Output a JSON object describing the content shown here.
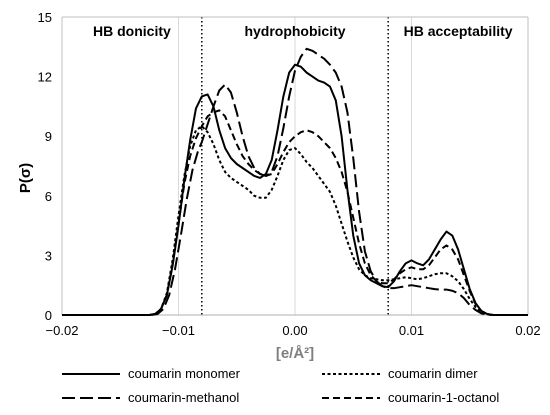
{
  "chart_data": {
    "type": "line",
    "xlabel": "[e/Å²]",
    "ylabel": "P(σ)",
    "xlim": [
      -0.02,
      0.02
    ],
    "ylim": [
      0,
      15
    ],
    "x_ticks": [
      "-0.02",
      "-0.01",
      "0.00",
      "0.01",
      "0.02"
    ],
    "y_ticks": [
      "0",
      "3",
      "6",
      "9",
      "12",
      "15"
    ],
    "grid": "vertical",
    "region_dividers": [
      -0.008,
      0.008
    ],
    "regions": [
      {
        "label": "HB donicity"
      },
      {
        "label": "hydrophobicity"
      },
      {
        "label": "HB acceptability"
      }
    ],
    "legend_position": "bottom",
    "series": [
      {
        "name": "coumarin monomer",
        "dash": "solid",
        "points": [
          [
            -0.02,
            0
          ],
          [
            -0.0125,
            0
          ],
          [
            -0.012,
            0.05
          ],
          [
            -0.0115,
            0.3
          ],
          [
            -0.011,
            1.0
          ],
          [
            -0.0105,
            2.5
          ],
          [
            -0.01,
            4.5
          ],
          [
            -0.0095,
            6.8
          ],
          [
            -0.009,
            8.8
          ],
          [
            -0.0085,
            10.4
          ],
          [
            -0.008,
            11.0
          ],
          [
            -0.0075,
            11.1
          ],
          [
            -0.007,
            10.5
          ],
          [
            -0.0065,
            9.3
          ],
          [
            -0.006,
            8.4
          ],
          [
            -0.0055,
            7.9
          ],
          [
            -0.005,
            7.6
          ],
          [
            -0.0045,
            7.4
          ],
          [
            -0.004,
            7.2
          ],
          [
            -0.0035,
            7.0
          ],
          [
            -0.003,
            6.9
          ],
          [
            -0.0025,
            7.1
          ],
          [
            -0.002,
            7.8
          ],
          [
            -0.0015,
            9.3
          ],
          [
            -0.001,
            11.0
          ],
          [
            -0.0005,
            12.2
          ],
          [
            0.0,
            12.6
          ],
          [
            0.0005,
            12.5
          ],
          [
            0.001,
            12.2
          ],
          [
            0.0015,
            12.0
          ],
          [
            0.002,
            11.8
          ],
          [
            0.0025,
            11.7
          ],
          [
            0.003,
            11.5
          ],
          [
            0.0035,
            10.8
          ],
          [
            0.004,
            9.0
          ],
          [
            0.0045,
            6.3
          ],
          [
            0.005,
            4.0
          ],
          [
            0.0055,
            2.6
          ],
          [
            0.006,
            2.0
          ],
          [
            0.0065,
            1.75
          ],
          [
            0.007,
            1.6
          ],
          [
            0.0075,
            1.45
          ],
          [
            0.008,
            1.4
          ],
          [
            0.0085,
            1.7
          ],
          [
            0.009,
            2.2
          ],
          [
            0.0095,
            2.6
          ],
          [
            0.01,
            2.75
          ],
          [
            0.0105,
            2.6
          ],
          [
            0.011,
            2.5
          ],
          [
            0.0115,
            2.8
          ],
          [
            0.012,
            3.3
          ],
          [
            0.0125,
            3.8
          ],
          [
            0.013,
            4.2
          ],
          [
            0.0135,
            4.0
          ],
          [
            0.014,
            3.3
          ],
          [
            0.0145,
            2.3
          ],
          [
            0.015,
            1.3
          ],
          [
            0.0155,
            0.6
          ],
          [
            0.016,
            0.2
          ],
          [
            0.0165,
            0.05
          ],
          [
            0.017,
            0
          ],
          [
            0.02,
            0
          ]
        ]
      },
      {
        "name": "coumarin dimer",
        "dash": "short-dash",
        "points": [
          [
            -0.02,
            0
          ],
          [
            -0.0125,
            0
          ],
          [
            -0.012,
            0.05
          ],
          [
            -0.0115,
            0.3
          ],
          [
            -0.011,
            1.1
          ],
          [
            -0.0105,
            2.8
          ],
          [
            -0.01,
            5.0
          ],
          [
            -0.0095,
            7.0
          ],
          [
            -0.009,
            8.5
          ],
          [
            -0.0085,
            9.3
          ],
          [
            -0.008,
            9.5
          ],
          [
            -0.0075,
            9.2
          ],
          [
            -0.007,
            8.6
          ],
          [
            -0.0065,
            7.8
          ],
          [
            -0.006,
            7.2
          ],
          [
            -0.0055,
            6.9
          ],
          [
            -0.005,
            6.7
          ],
          [
            -0.0045,
            6.5
          ],
          [
            -0.004,
            6.3
          ],
          [
            -0.0035,
            6.0
          ],
          [
            -0.003,
            5.9
          ],
          [
            -0.0025,
            5.9
          ],
          [
            -0.002,
            6.3
          ],
          [
            -0.0015,
            7.0
          ],
          [
            -0.001,
            7.8
          ],
          [
            -0.0005,
            8.3
          ],
          [
            0.0,
            8.4
          ],
          [
            0.0005,
            8.1
          ],
          [
            0.001,
            7.7
          ],
          [
            0.0015,
            7.4
          ],
          [
            0.002,
            7.0
          ],
          [
            0.0025,
            6.6
          ],
          [
            0.003,
            6.2
          ],
          [
            0.0035,
            5.5
          ],
          [
            0.004,
            4.6
          ],
          [
            0.0045,
            3.7
          ],
          [
            0.005,
            2.9
          ],
          [
            0.0055,
            2.3
          ],
          [
            0.006,
            2.0
          ],
          [
            0.0065,
            1.85
          ],
          [
            0.007,
            1.8
          ],
          [
            0.0075,
            1.75
          ],
          [
            0.008,
            1.75
          ],
          [
            0.0085,
            1.8
          ],
          [
            0.009,
            1.85
          ],
          [
            0.0095,
            1.9
          ],
          [
            0.01,
            1.85
          ],
          [
            0.0105,
            1.8
          ],
          [
            0.011,
            1.85
          ],
          [
            0.0115,
            1.95
          ],
          [
            0.012,
            2.05
          ],
          [
            0.0125,
            2.1
          ],
          [
            0.013,
            2.1
          ],
          [
            0.0135,
            1.95
          ],
          [
            0.014,
            1.7
          ],
          [
            0.0145,
            1.3
          ],
          [
            0.015,
            0.8
          ],
          [
            0.0155,
            0.4
          ],
          [
            0.016,
            0.15
          ],
          [
            0.0165,
            0.03
          ],
          [
            0.017,
            0
          ],
          [
            0.02,
            0
          ]
        ]
      },
      {
        "name": "coumarin-methanol",
        "dash": "long-dash",
        "points": [
          [
            -0.02,
            0
          ],
          [
            -0.0123,
            0
          ],
          [
            -0.0118,
            0.05
          ],
          [
            -0.0113,
            0.3
          ],
          [
            -0.0108,
            1.0
          ],
          [
            -0.0103,
            2.3
          ],
          [
            -0.0098,
            4.0
          ],
          [
            -0.0093,
            5.8
          ],
          [
            -0.0088,
            7.3
          ],
          [
            -0.0083,
            8.3
          ],
          [
            -0.008,
            8.7
          ],
          [
            -0.0075,
            9.6
          ],
          [
            -0.007,
            10.5
          ],
          [
            -0.0065,
            11.3
          ],
          [
            -0.006,
            11.6
          ],
          [
            -0.0055,
            11.2
          ],
          [
            -0.005,
            10.2
          ],
          [
            -0.0045,
            9.0
          ],
          [
            -0.004,
            8.0
          ],
          [
            -0.0035,
            7.4
          ],
          [
            -0.003,
            7.1
          ],
          [
            -0.0025,
            7.0
          ],
          [
            -0.002,
            7.2
          ],
          [
            -0.0015,
            8.0
          ],
          [
            -0.001,
            9.4
          ],
          [
            -0.0005,
            11.0
          ],
          [
            0.0,
            12.3
          ],
          [
            0.0005,
            13.0
          ],
          [
            0.001,
            13.4
          ],
          [
            0.0015,
            13.3
          ],
          [
            0.002,
            13.1
          ],
          [
            0.0025,
            12.9
          ],
          [
            0.003,
            12.6
          ],
          [
            0.0035,
            12.2
          ],
          [
            0.004,
            11.5
          ],
          [
            0.0045,
            10.2
          ],
          [
            0.005,
            7.9
          ],
          [
            0.0055,
            5.2
          ],
          [
            0.006,
            3.2
          ],
          [
            0.0065,
            2.2
          ],
          [
            0.007,
            1.7
          ],
          [
            0.0075,
            1.45
          ],
          [
            0.008,
            1.35
          ],
          [
            0.0085,
            1.35
          ],
          [
            0.009,
            1.4
          ],
          [
            0.0095,
            1.45
          ],
          [
            0.01,
            1.5
          ],
          [
            0.0105,
            1.45
          ],
          [
            0.011,
            1.4
          ],
          [
            0.0115,
            1.35
          ],
          [
            0.012,
            1.3
          ],
          [
            0.0125,
            1.28
          ],
          [
            0.013,
            1.28
          ],
          [
            0.0135,
            1.22
          ],
          [
            0.014,
            1.1
          ],
          [
            0.0145,
            0.85
          ],
          [
            0.015,
            0.5
          ],
          [
            0.0155,
            0.25
          ],
          [
            0.016,
            0.08
          ],
          [
            0.0165,
            0.02
          ],
          [
            0.017,
            0
          ],
          [
            0.02,
            0
          ]
        ]
      },
      {
        "name": "coumarin-1-octanol",
        "dash": "medium-dash",
        "points": [
          [
            -0.02,
            0
          ],
          [
            -0.0125,
            0
          ],
          [
            -0.012,
            0.05
          ],
          [
            -0.0115,
            0.3
          ],
          [
            -0.011,
            1.0
          ],
          [
            -0.0105,
            2.6
          ],
          [
            -0.01,
            4.6
          ],
          [
            -0.0095,
            6.6
          ],
          [
            -0.009,
            8.0
          ],
          [
            -0.0085,
            8.9
          ],
          [
            -0.008,
            9.5
          ],
          [
            -0.0075,
            10.0
          ],
          [
            -0.007,
            10.2
          ],
          [
            -0.0065,
            10.3
          ],
          [
            -0.006,
            10.0
          ],
          [
            -0.0055,
            9.3
          ],
          [
            -0.005,
            8.6
          ],
          [
            -0.0045,
            8.0
          ],
          [
            -0.004,
            7.6
          ],
          [
            -0.0035,
            7.3
          ],
          [
            -0.003,
            7.1
          ],
          [
            -0.0025,
            7.0
          ],
          [
            -0.002,
            7.1
          ],
          [
            -0.0015,
            7.6
          ],
          [
            -0.001,
            8.2
          ],
          [
            -0.0005,
            8.7
          ],
          [
            0.0,
            9.0
          ],
          [
            0.0005,
            9.2
          ],
          [
            0.001,
            9.3
          ],
          [
            0.0015,
            9.2
          ],
          [
            0.002,
            9.0
          ],
          [
            0.0025,
            8.7
          ],
          [
            0.003,
            8.4
          ],
          [
            0.0035,
            7.9
          ],
          [
            0.004,
            7.2
          ],
          [
            0.0045,
            6.2
          ],
          [
            0.005,
            4.9
          ],
          [
            0.0055,
            3.6
          ],
          [
            0.006,
            2.6
          ],
          [
            0.0065,
            2.0
          ],
          [
            0.007,
            1.7
          ],
          [
            0.0075,
            1.6
          ],
          [
            0.008,
            1.6
          ],
          [
            0.0085,
            1.8
          ],
          [
            0.009,
            2.1
          ],
          [
            0.0095,
            2.3
          ],
          [
            0.01,
            2.4
          ],
          [
            0.0105,
            2.3
          ],
          [
            0.011,
            2.3
          ],
          [
            0.0115,
            2.5
          ],
          [
            0.012,
            2.9
          ],
          [
            0.0125,
            3.3
          ],
          [
            0.013,
            3.5
          ],
          [
            0.0135,
            3.3
          ],
          [
            0.014,
            2.8
          ],
          [
            0.0145,
            2.0
          ],
          [
            0.015,
            1.2
          ],
          [
            0.0155,
            0.55
          ],
          [
            0.016,
            0.2
          ],
          [
            0.0165,
            0.05
          ],
          [
            0.017,
            0
          ],
          [
            0.02,
            0
          ]
        ]
      }
    ]
  }
}
